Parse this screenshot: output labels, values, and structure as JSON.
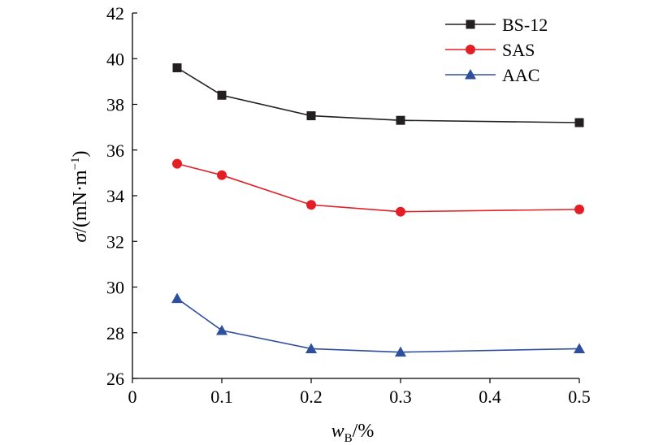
{
  "chart_data": {
    "type": "line",
    "xlabel": {
      "var": "w",
      "sub": "B",
      "unit": "/%"
    },
    "ylabel": {
      "var": "σ",
      "unit": "/(mN·m",
      "sup": "−1",
      "close": ")"
    },
    "xlim": [
      0,
      0.5
    ],
    "ylim": [
      26,
      42
    ],
    "xticks": [
      "0",
      "0.1",
      "0.2",
      "0.3",
      "0.4",
      "0.5"
    ],
    "xtick_values": [
      0,
      0.1,
      0.2,
      0.3,
      0.4,
      0.5
    ],
    "yticks": [
      "26",
      "28",
      "30",
      "32",
      "34",
      "36",
      "38",
      "40",
      "42"
    ],
    "ytick_values": [
      26,
      28,
      30,
      32,
      34,
      36,
      38,
      40,
      42
    ],
    "grid": false,
    "legend_position": "top-right",
    "x": [
      0.05,
      0.1,
      0.2,
      0.3,
      0.5
    ],
    "series": [
      {
        "name": "BS-12",
        "color": "#231f20",
        "marker": "square",
        "values": [
          39.6,
          38.4,
          37.5,
          37.3,
          37.2
        ]
      },
      {
        "name": "SAS",
        "color": "#e31e24",
        "marker": "circle",
        "values": [
          35.4,
          34.9,
          33.6,
          33.3,
          33.4
        ]
      },
      {
        "name": "AAC",
        "color": "#2e4e9e",
        "marker": "triangle",
        "values": [
          29.5,
          28.1,
          27.3,
          27.15,
          27.3
        ]
      }
    ]
  }
}
